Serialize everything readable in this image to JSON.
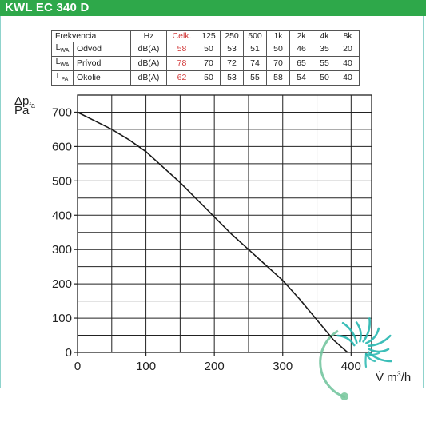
{
  "header": {
    "title": "KWL EC 340 D"
  },
  "noise_table": {
    "header": [
      "Frekvencia",
      "Hz",
      "Celk.",
      "125",
      "250",
      "500",
      "1k",
      "2k",
      "4k",
      "8k"
    ],
    "rows": [
      {
        "symbol": "L",
        "sub": "WA",
        "name": "Odvod",
        "unit": "dB(A)",
        "total": "58",
        "bands": [
          "50",
          "53",
          "51",
          "50",
          "46",
          "35",
          "20"
        ]
      },
      {
        "symbol": "L",
        "sub": "WA",
        "name": "Prívod",
        "unit": "dB(A)",
        "total": "78",
        "bands": [
          "70",
          "72",
          "74",
          "70",
          "65",
          "55",
          "40"
        ]
      },
      {
        "symbol": "L",
        "sub": "PA",
        "name": "Okolie",
        "unit": "dB(A)",
        "total": "62",
        "bands": [
          "50",
          "53",
          "55",
          "58",
          "54",
          "50",
          "40"
        ]
      }
    ]
  },
  "chart_data": {
    "type": "line",
    "y_axis_label": {
      "main": "Δp",
      "sub": "fa",
      "unit": "Pa"
    },
    "x_axis_label": {
      "main": "V̇ m",
      "sup": "3",
      "unit": "/h"
    },
    "xlim": [
      0,
      430
    ],
    "ylim": [
      0,
      750
    ],
    "x_ticks": [
      0,
      100,
      200,
      300,
      400
    ],
    "y_ticks": [
      0,
      100,
      200,
      300,
      400,
      500,
      600,
      700
    ],
    "grid": true,
    "series": [
      {
        "x": [
          0,
          25,
          50,
          75,
          100,
          125,
          150,
          175,
          200,
          225,
          250,
          275,
          300,
          325,
          350,
          375,
          395
        ],
        "y": [
          700,
          675,
          650,
          620,
          585,
          540,
          495,
          445,
          395,
          345,
          300,
          255,
          210,
          155,
          95,
          35,
          0
        ],
        "color": "#1a1a1a"
      }
    ],
    "colors": {
      "grid": "#222222",
      "curve": "#1a1a1a",
      "accent_red": "#d23b3b",
      "brand_green": "#2ea84a"
    }
  }
}
